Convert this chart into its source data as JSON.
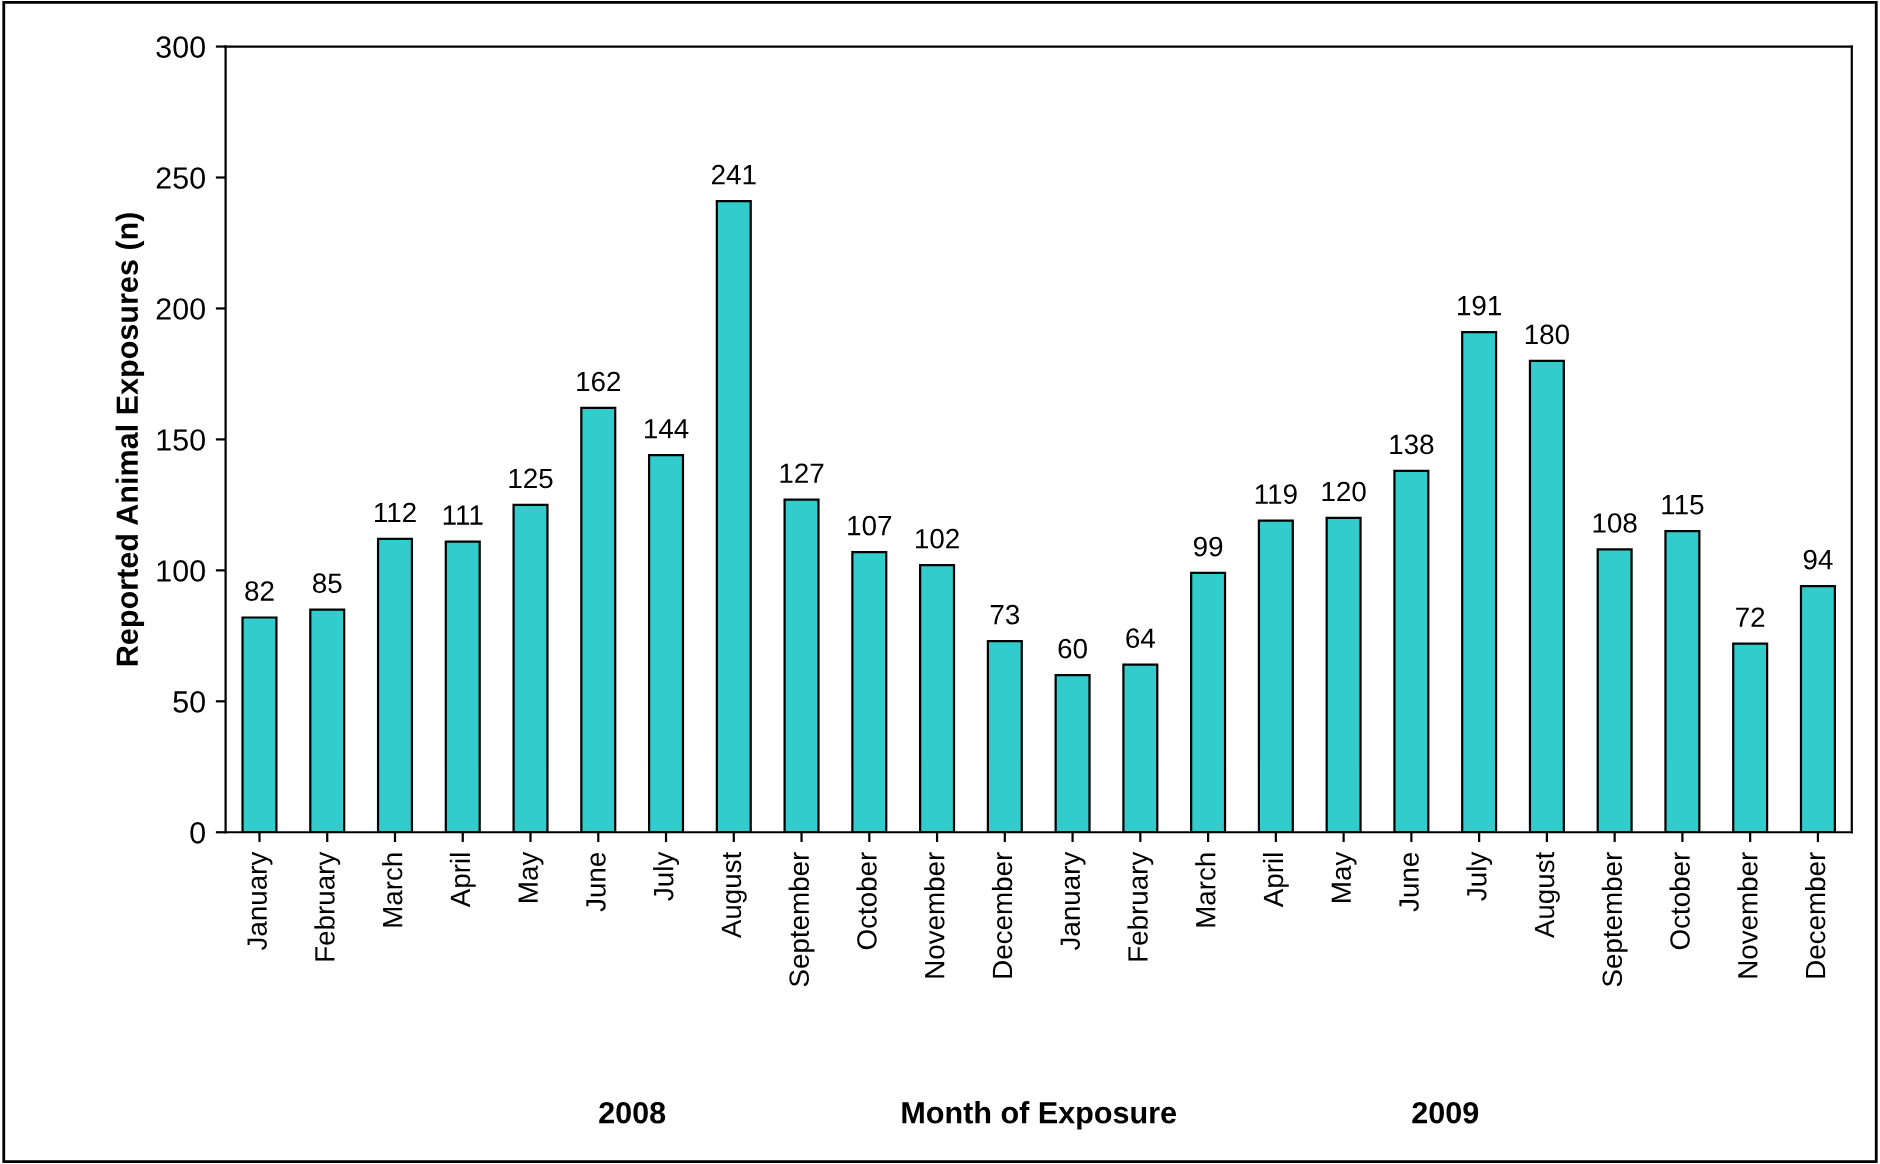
{
  "chart_data": {
    "type": "bar",
    "categories": [
      "January",
      "February",
      "March",
      "April",
      "May",
      "June",
      "July",
      "August",
      "September",
      "October",
      "November",
      "December",
      "January",
      "February",
      "March",
      "April",
      "May",
      "June",
      "July",
      "August",
      "September",
      "October",
      "November",
      "December"
    ],
    "values": [
      82,
      85,
      112,
      111,
      125,
      162,
      144,
      241,
      127,
      107,
      102,
      73,
      60,
      64,
      99,
      119,
      120,
      138,
      191,
      180,
      108,
      115,
      72,
      94
    ],
    "color": "#33cccc",
    "ylabel": "Reported Animal Exposures (n)",
    "xlabel": "Month of Exposure",
    "annotations": [
      "2008",
      "2009"
    ],
    "ylim": [
      0,
      300
    ],
    "yticks": [
      0,
      50,
      100,
      150,
      200,
      250,
      300
    ],
    "data_labels": true,
    "grid": false,
    "legend": false
  }
}
